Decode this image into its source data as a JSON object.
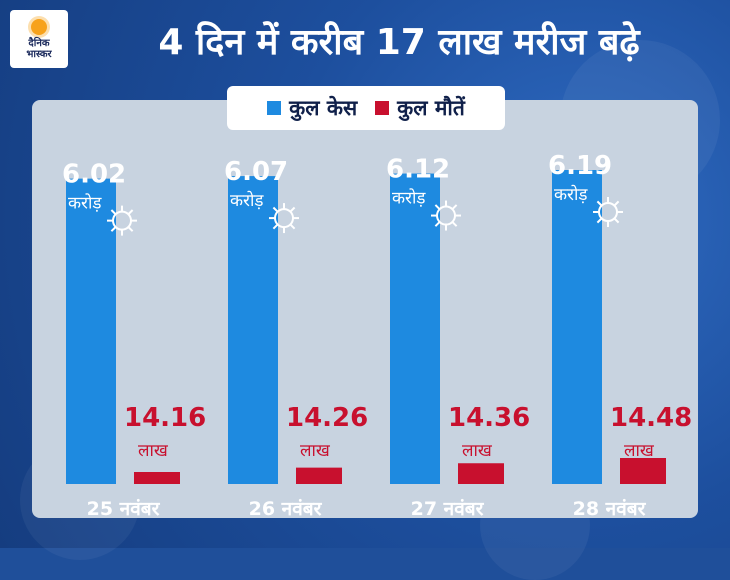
{
  "header": {
    "logo_line1": "दैनिक",
    "logo_line2": "भास्कर",
    "title": "4 दिन में करीब 17 लाख मरीज बढ़े"
  },
  "legend": {
    "cases_label": "कुल केस",
    "deaths_label": "कुल मौतें"
  },
  "colors": {
    "cases": "#1e8ae0",
    "deaths": "#c8102e",
    "background": "#1f4f9a",
    "panel": "#c8d3e0"
  },
  "chart_data": {
    "type": "bar",
    "categories": [
      "25 नवंबर",
      "26 नवंबर",
      "27 नवंबर",
      "28 नवंबर"
    ],
    "series": [
      {
        "name": "कुल केस",
        "values": [
          6.02,
          6.07,
          6.12,
          6.19
        ],
        "unit": "करोड़",
        "labels": [
          "6.02",
          "6.07",
          "6.12",
          "6.19"
        ]
      },
      {
        "name": "कुल मौतें",
        "values": [
          14.16,
          14.26,
          14.36,
          14.48
        ],
        "unit": "लाख",
        "labels": [
          "14.16",
          "14.26",
          "14.36",
          "14.48"
        ]
      }
    ],
    "legend_position": "top-center",
    "grid": false
  }
}
